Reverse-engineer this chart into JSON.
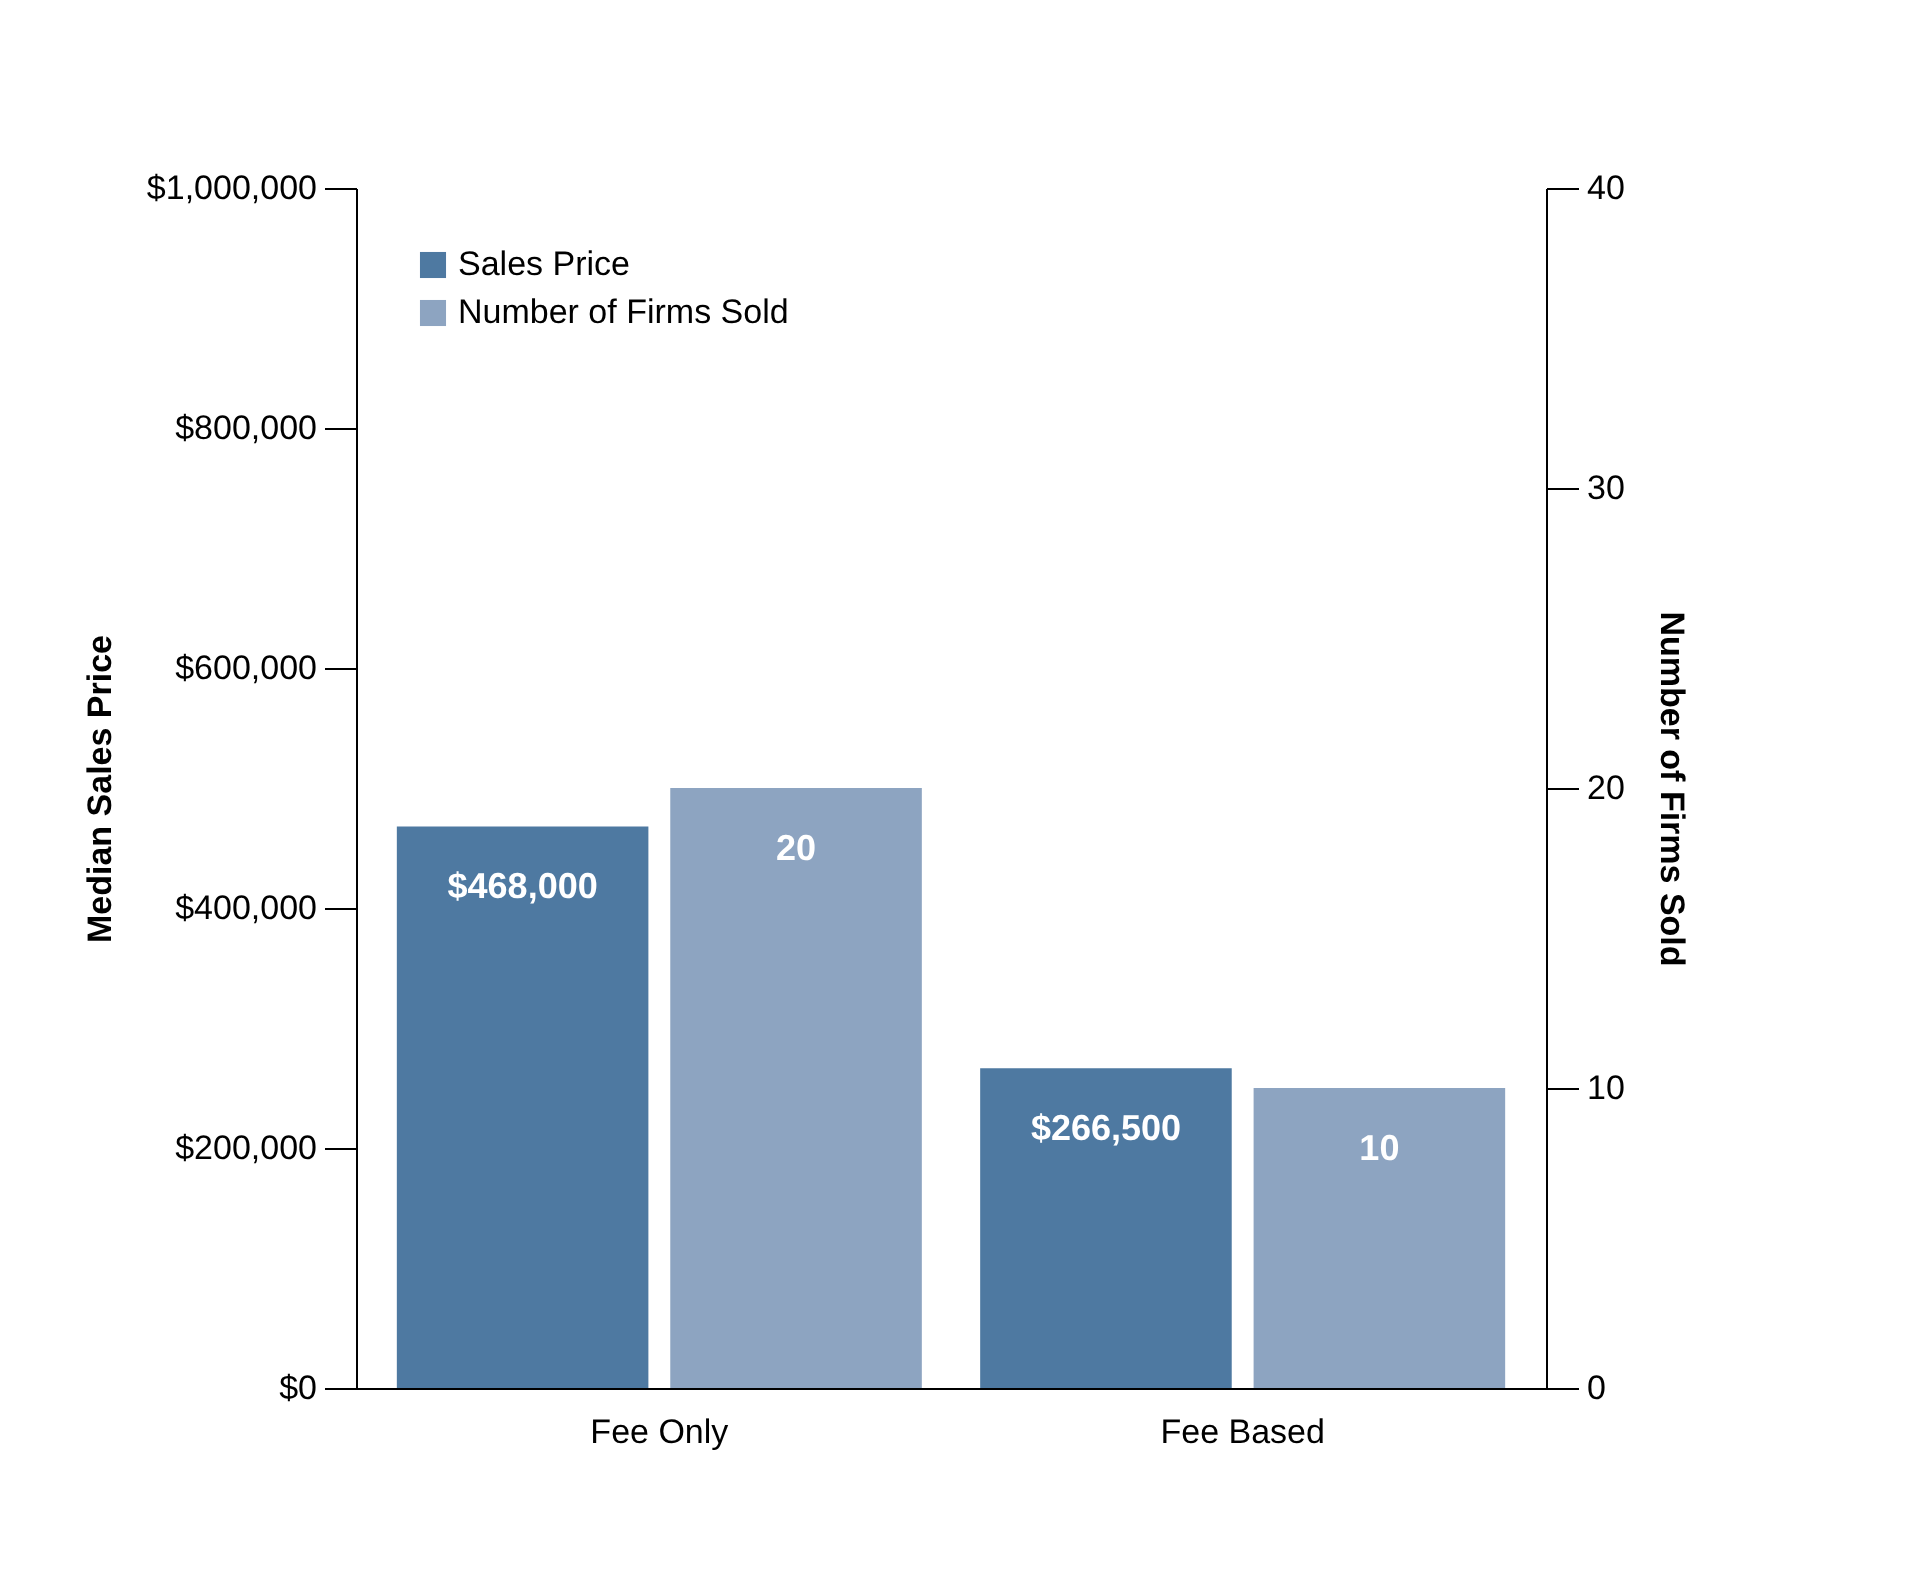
{
  "chart_data": {
    "type": "bar",
    "categories": [
      "Fee Only",
      "Fee Based"
    ],
    "ylabel": "Median Sales Price",
    "y2label": "Number of Firms Sold",
    "ylim": [
      0,
      1000000
    ],
    "yticks": [
      {
        "value": 0,
        "label": "$0"
      },
      {
        "value": 200000,
        "label": "$200,000"
      },
      {
        "value": 400000,
        "label": "$400,000"
      },
      {
        "value": 600000,
        "label": "$600,000"
      },
      {
        "value": 800000,
        "label": "$800,000"
      },
      {
        "value": 1000000,
        "label": "$1,000,000"
      }
    ],
    "y2lim": [
      0,
      40
    ],
    "y2ticks": [
      0,
      10,
      20,
      30,
      40
    ],
    "series": [
      {
        "name": "Sales Price",
        "color": "#4e79a1",
        "values": [
          468000,
          266500
        ],
        "value_labels": [
          "$468,000",
          "$266,500"
        ]
      },
      {
        "name": "Number of Firms Sold",
        "color": "#8da4c1",
        "values": [
          20,
          10
        ],
        "axis": "y2",
        "value_labels": [
          "20",
          "10"
        ]
      }
    ],
    "legend": "top left",
    "grid": false
  }
}
